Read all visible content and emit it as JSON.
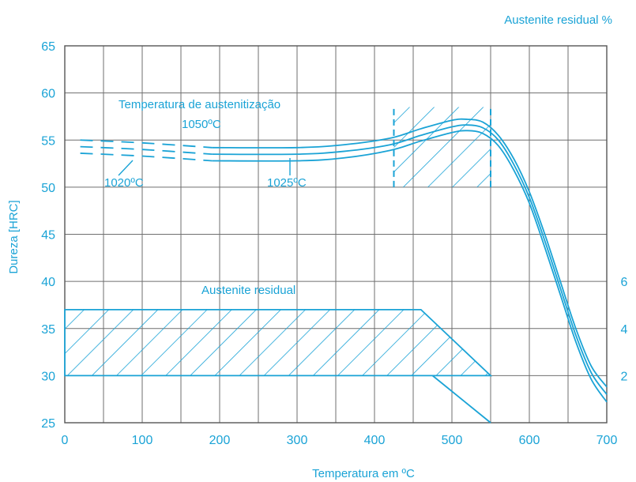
{
  "chart_data": {
    "type": "line",
    "title": "",
    "xlabel": "Temperatura em ºC",
    "ylabel": "Dureza [HRC]",
    "y2label": "Austenite residual %",
    "xlim": [
      0,
      700
    ],
    "ylim": [
      25,
      65
    ],
    "y2lim": [
      0,
      6
    ],
    "x_ticks": [
      "0",
      "100",
      "200",
      "300",
      "400",
      "500",
      "600",
      "700"
    ],
    "y_ticks": [
      "25",
      "30",
      "35",
      "40",
      "45",
      "50",
      "55",
      "60",
      "65"
    ],
    "y2_ticks": [
      "2",
      "4",
      "6"
    ],
    "grid": true,
    "line_color": "#1aa3d6",
    "annotations": {
      "austenitization": "Temperatura de austenitização",
      "austenite_band": "Austenite residual"
    },
    "series": [
      {
        "name": "1050ºC",
        "x": [
          20,
          100,
          190,
          300,
          360,
          420,
          460,
          500,
          520,
          540,
          560,
          580,
          600,
          620,
          640,
          660,
          680,
          700
        ],
        "y": [
          55,
          54.7,
          54.2,
          54.2,
          54.5,
          55.2,
          56.2,
          57.1,
          57.2,
          56.9,
          55.5,
          53.0,
          49.5,
          45.0,
          40.0,
          35.0,
          31.0,
          28.8
        ],
        "dashed_until": 190
      },
      {
        "name": "1025ºC",
        "x": [
          20,
          100,
          190,
          300,
          360,
          420,
          460,
          500,
          520,
          540,
          560,
          580,
          600,
          620,
          640,
          660,
          680,
          700
        ],
        "y": [
          54.3,
          54.0,
          53.5,
          53.5,
          53.8,
          54.5,
          55.5,
          56.4,
          56.6,
          56.3,
          55.0,
          52.4,
          48.9,
          44.3,
          39.3,
          34.3,
          30.3,
          28.0
        ],
        "dashed_until": 190
      },
      {
        "name": "1020ºC",
        "x": [
          20,
          100,
          190,
          300,
          360,
          420,
          460,
          500,
          520,
          540,
          560,
          580,
          600,
          620,
          640,
          660,
          680,
          700
        ],
        "y": [
          53.6,
          53.3,
          52.8,
          52.8,
          53.1,
          53.9,
          54.9,
          55.8,
          56.0,
          55.7,
          54.4,
          51.8,
          48.3,
          43.6,
          38.6,
          33.6,
          29.6,
          27.2
        ],
        "dashed_until": 190
      }
    ],
    "hatched_regions": [
      {
        "name": "secondary-hardening-zone",
        "x": [
          425,
          550
        ],
        "y": [
          50,
          58.5
        ]
      },
      {
        "name": "austenite-residual-zone",
        "polygon": [
          [
            0,
            37
          ],
          [
            460,
            37
          ],
          [
            550,
            30
          ],
          [
            0,
            30
          ]
        ]
      }
    ],
    "austenite_decay_line": [
      [
        475,
        30
      ],
      [
        550,
        25
      ]
    ]
  }
}
